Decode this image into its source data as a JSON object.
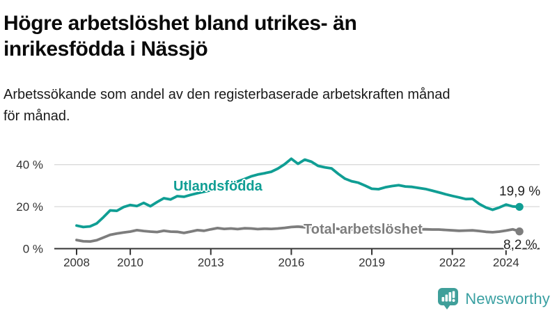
{
  "header": {
    "title_line1": "Högre arbetslöshet bland utrikes- än",
    "title_line2": "inrikesfödda i Nässjö",
    "subtitle_line1": "Arbetssökande som andel av den registerbaserade arbetskraften månad",
    "subtitle_line2": "för månad."
  },
  "chart_data": {
    "type": "line",
    "x_unit": "year (monthly series shown, plotted quarterly estimates)",
    "y_unit": "% av registerbaserad arbetskraft",
    "x_start": 2008,
    "x_step": 0.25,
    "x_end": 2024.5,
    "ylim": [
      0,
      45
    ],
    "grid": "horizontal",
    "x_ticks": [
      "2008",
      "2010",
      "2013",
      "2016",
      "2019",
      "2022",
      "2024"
    ],
    "x_tick_years": [
      2008,
      2010,
      2013,
      2016,
      2019,
      2022,
      2024
    ],
    "y_ticks": [
      0,
      20,
      40
    ],
    "y_tick_labels": [
      "0 %",
      "20 %",
      "40 %"
    ],
    "colors": {
      "grid": "#d9d9d9",
      "axis": "#333333",
      "tick_text": "#333333"
    },
    "series": [
      {
        "name": "Utlandsfödda",
        "color": "#109e94",
        "end_label": "19,9 %",
        "end_value": 19.9,
        "values": [
          11.0,
          10.3,
          10.6,
          12.0,
          15.0,
          18.2,
          18.0,
          19.8,
          20.8,
          20.3,
          21.8,
          20.2,
          22.2,
          24.0,
          23.4,
          25.0,
          24.7,
          25.6,
          26.4,
          27.1,
          27.8,
          28.6,
          29.6,
          30.8,
          32.0,
          33.1,
          34.4,
          35.3,
          35.9,
          36.6,
          38.1,
          40.2,
          42.8,
          40.4,
          42.4,
          41.4,
          39.4,
          38.7,
          38.2,
          35.6,
          33.3,
          32.1,
          31.4,
          30.0,
          28.5,
          28.3,
          29.2,
          29.8,
          30.2,
          29.6,
          29.4,
          28.9,
          28.4,
          27.6,
          26.8,
          25.9,
          25.1,
          24.4,
          23.6,
          23.7,
          21.3,
          19.6,
          18.5,
          19.6,
          21.0,
          20.1,
          19.9
        ]
      },
      {
        "name": "Total arbetslöshet",
        "color": "#7d7d7d",
        "end_label": "8,2 %",
        "end_value": 8.2,
        "values": [
          4.1,
          3.5,
          3.4,
          4.0,
          5.3,
          6.6,
          7.2,
          7.7,
          8.1,
          8.8,
          8.4,
          8.1,
          7.9,
          8.5,
          8.1,
          8.0,
          7.5,
          8.1,
          8.8,
          8.5,
          9.2,
          9.8,
          9.4,
          9.6,
          9.3,
          9.7,
          9.6,
          9.3,
          9.5,
          9.4,
          9.6,
          9.9,
          10.3,
          10.5,
          10.2,
          10.0,
          10.1,
          9.9,
          9.7,
          9.4,
          9.2,
          9.0,
          8.8,
          8.6,
          8.4,
          8.2,
          8.3,
          8.5,
          9.0,
          9.4,
          9.3,
          9.2,
          9.2,
          9.1,
          9.1,
          8.9,
          8.7,
          8.5,
          8.6,
          8.7,
          8.4,
          8.0,
          7.8,
          8.1,
          8.6,
          9.2,
          8.2
        ]
      }
    ]
  },
  "footer": {
    "brand": "Newsworthy",
    "brand_color": "#3aa0a2",
    "logo_bubble_color": "#3f9f9a",
    "logo_icon": "newsworthy-barchart-speech-bubble"
  }
}
